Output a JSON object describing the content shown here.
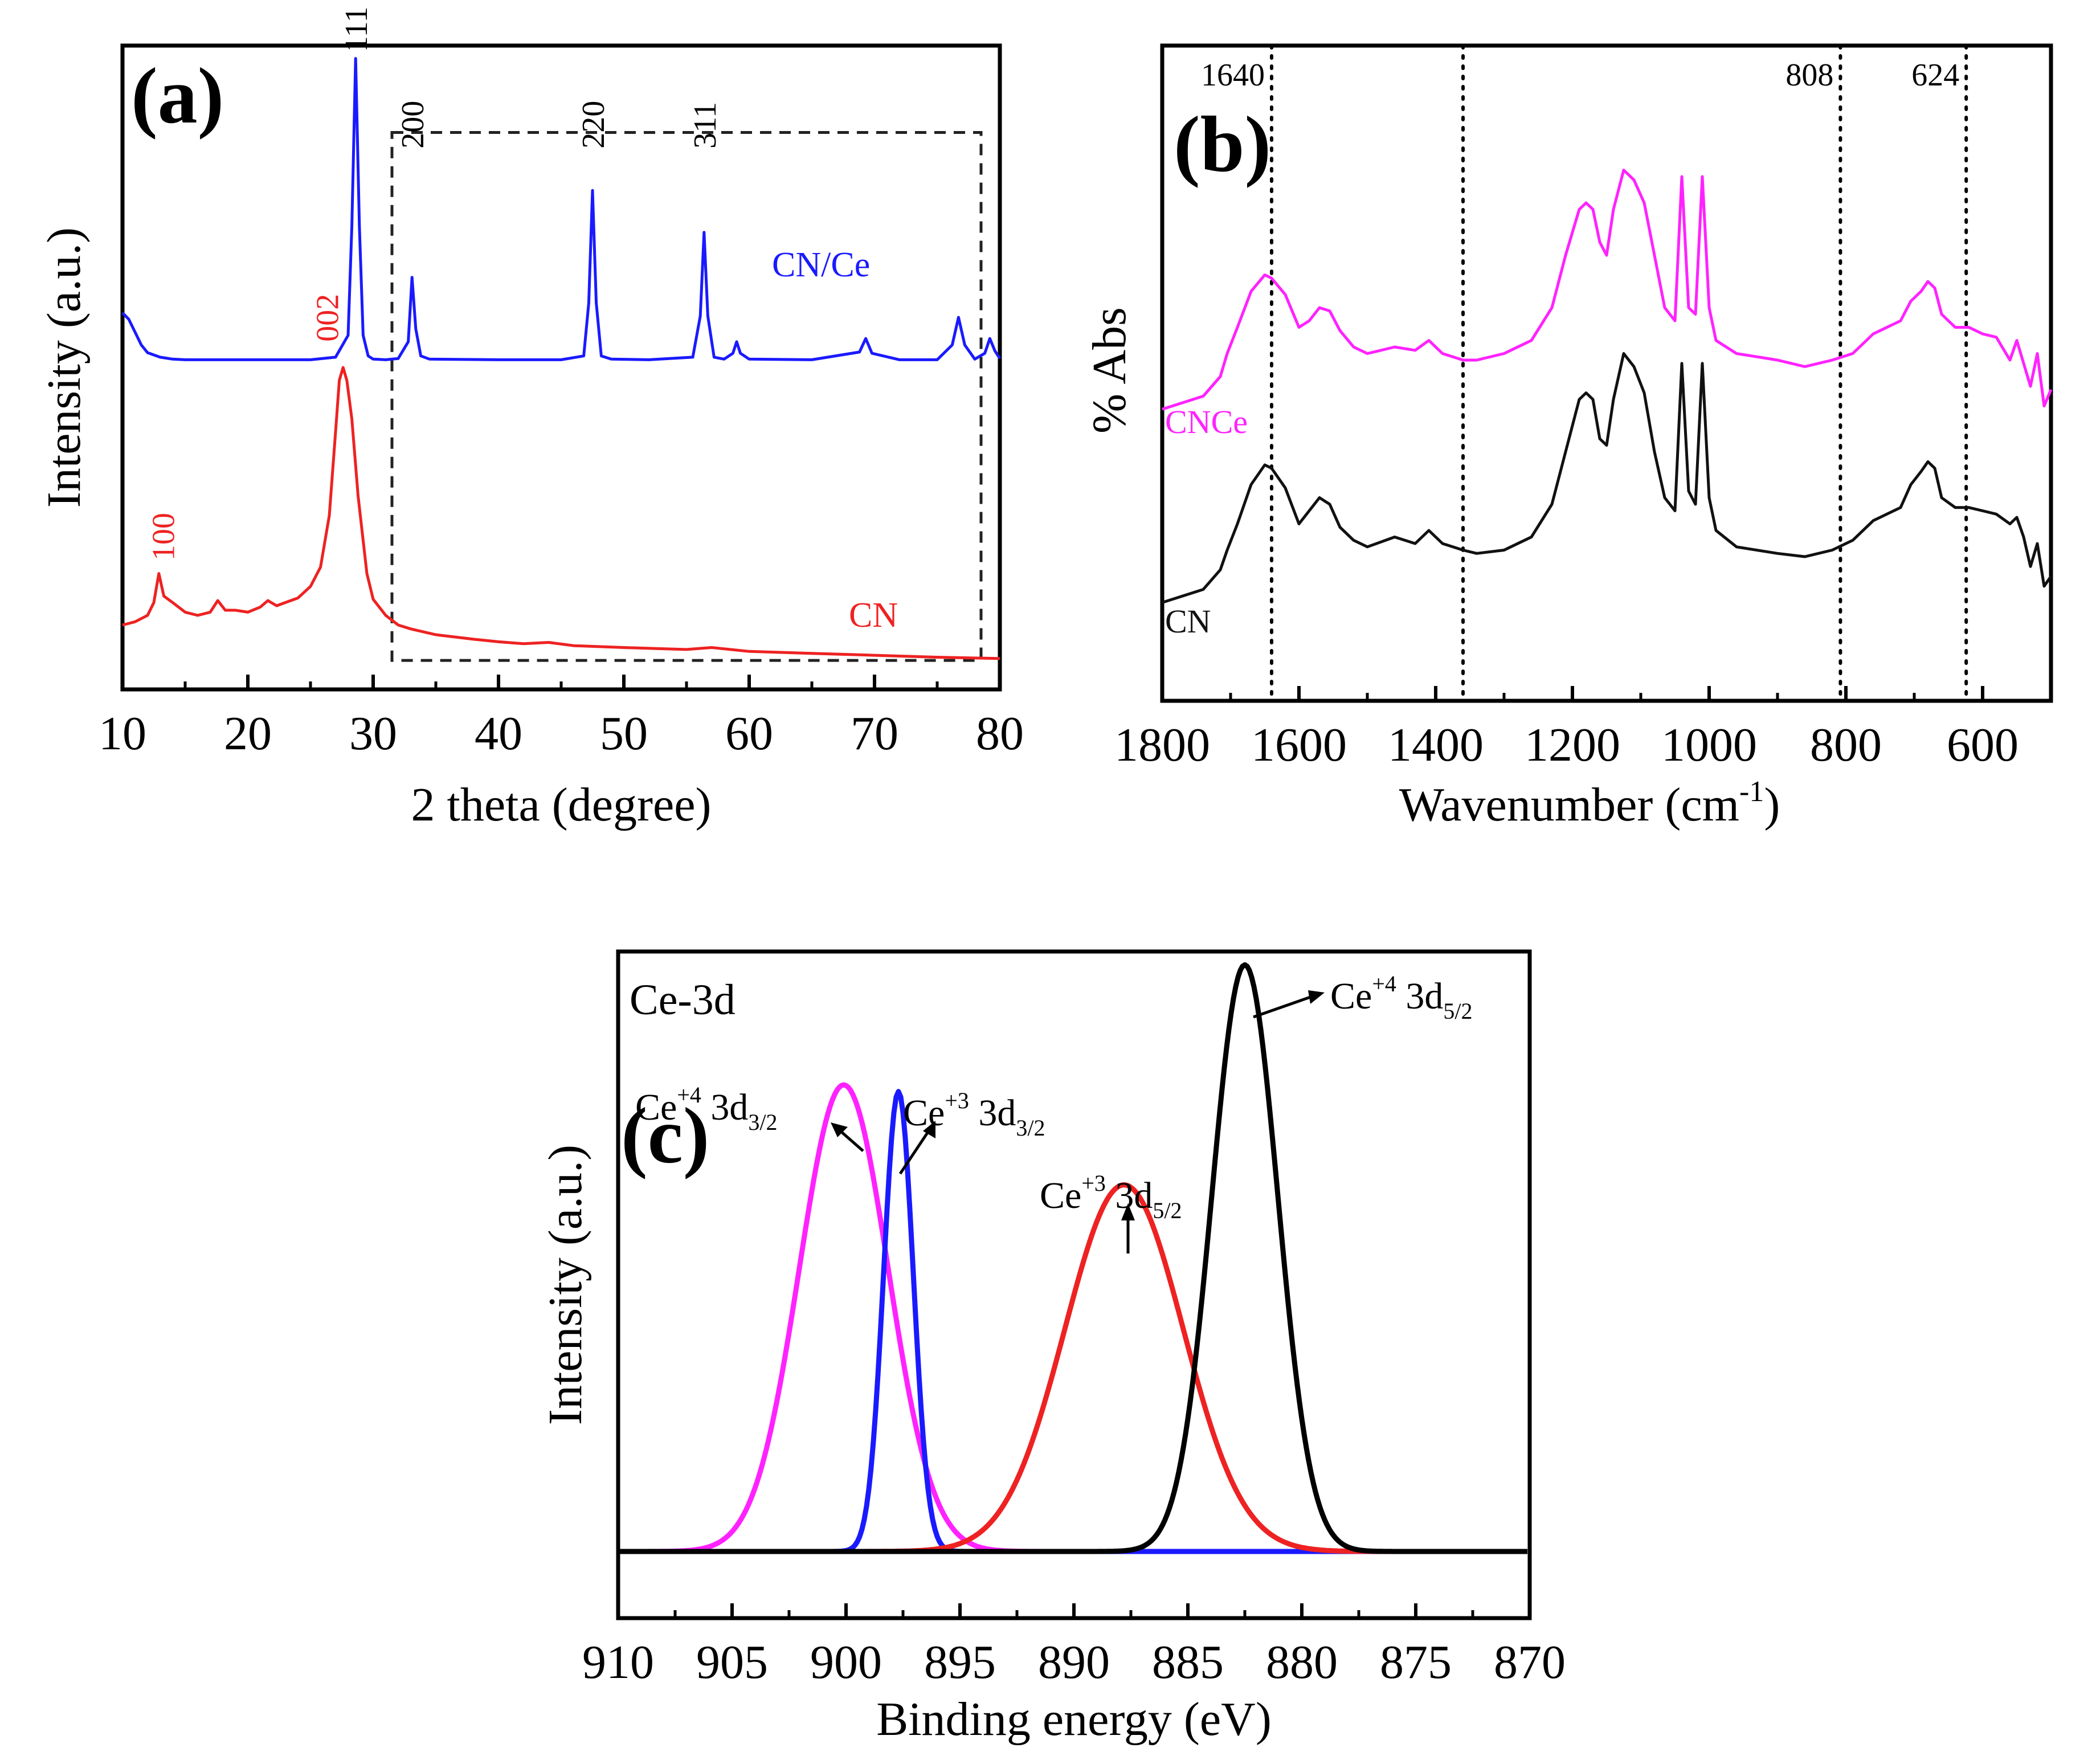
{
  "chart_data": [
    {
      "panel": "(a)",
      "type": "line",
      "xlabel": "2 theta (degree)",
      "ylabel": "Intensity (a.u.)",
      "xlim": [
        10,
        80
      ],
      "xticks": [
        "10",
        "20",
        "30",
        "40",
        "50",
        "60",
        "70",
        "80"
      ],
      "ylim": [
        0,
        100
      ],
      "grid": false,
      "legend": "inline labels",
      "series": [
        {
          "name": "CN/Ce",
          "color": "#1a1aff",
          "x": [
            10,
            10.5,
            11,
            11.5,
            12,
            13,
            14,
            15,
            20,
            25,
            27,
            28,
            28.3,
            28.6,
            28.9,
            29.2,
            29.6,
            30,
            31,
            32,
            32.8,
            33.1,
            33.4,
            33.8,
            34.5,
            40,
            45,
            46.8,
            47.2,
            47.5,
            47.8,
            48.2,
            49,
            52,
            55.5,
            56.1,
            56.4,
            56.7,
            57.2,
            58,
            58.7,
            59,
            59.3,
            60,
            65,
            68.8,
            69.3,
            69.8,
            72,
            75,
            76.2,
            76.7,
            77.2,
            78,
            78.8,
            79.2,
            79.6,
            80
          ],
          "values": [
            58.5,
            57.5,
            55.5,
            53.5,
            52.3,
            51.6,
            51.3,
            51.2,
            51.2,
            51.2,
            51.6,
            55,
            72,
            98,
            72,
            55,
            51.8,
            51.3,
            51.2,
            51.4,
            54,
            64,
            56,
            51.8,
            51.3,
            51.2,
            51.2,
            51.8,
            60,
            77.5,
            60,
            51.8,
            51.3,
            51.2,
            51.6,
            58,
            71,
            58,
            51.6,
            51.3,
            52.2,
            54,
            52.2,
            51.3,
            51.2,
            52.4,
            54.5,
            52.2,
            51.2,
            51.2,
            53.5,
            57.8,
            53.5,
            51.3,
            52.2,
            54.5,
            52.6,
            51.4
          ]
        },
        {
          "name": "CN",
          "color": "#ee2222",
          "x": [
            10,
            11,
            12,
            12.5,
            12.9,
            13.3,
            14,
            15,
            16,
            17,
            17.6,
            18.2,
            19,
            20,
            21,
            21.6,
            22.3,
            23,
            24,
            25,
            25.8,
            26.5,
            27,
            27.3,
            27.6,
            27.9,
            28.3,
            28.8,
            29.5,
            30,
            31,
            32,
            33,
            35,
            38,
            40,
            42,
            44,
            46,
            50,
            55,
            57,
            60,
            65,
            70,
            75,
            80
          ],
          "values": [
            10,
            10.5,
            11.5,
            13.5,
            18,
            14.5,
            13.5,
            12,
            11.5,
            12,
            13.8,
            12.3,
            12.3,
            12,
            12.8,
            13.8,
            13,
            13.5,
            14.2,
            16,
            19,
            27,
            40,
            48,
            50,
            48,
            42,
            30,
            18,
            14,
            11.5,
            10,
            9.4,
            8.5,
            7.8,
            7.4,
            7.1,
            7.3,
            6.8,
            6.5,
            6.2,
            6.5,
            5.9,
            5.6,
            5.3,
            5,
            4.8
          ]
        }
      ],
      "annotations": [
        {
          "text": "111",
          "x": 28.6,
          "y": 99,
          "color": "#000000"
        },
        {
          "text": "200",
          "x": 33.1,
          "y": 84,
          "color": "#000000"
        },
        {
          "text": "220",
          "x": 47.5,
          "y": 84,
          "color": "#000000"
        },
        {
          "text": "311",
          "x": 56.4,
          "y": 84,
          "color": "#000000"
        },
        {
          "text": "002",
          "x": 26.3,
          "y": 54,
          "color": "#ee2222"
        },
        {
          "text": "100",
          "x": 13.2,
          "y": 20,
          "color": "#ee2222"
        }
      ]
    },
    {
      "panel": "(b)",
      "type": "line",
      "xlabel": "Wavenumber (cm⁻¹)",
      "ylabel": "% Abs",
      "xlim": [
        1800,
        500
      ],
      "xticks": [
        "1800",
        "1600",
        "1400",
        "1200",
        "1000",
        "800",
        "600"
      ],
      "ylim": [
        0,
        100
      ],
      "grid": false,
      "legend": "inline labels",
      "reference_lines": [
        {
          "x": 1640,
          "label": "1640"
        },
        {
          "x": 1360,
          "label": ""
        },
        {
          "x": 808,
          "label": "808"
        },
        {
          "x": 624,
          "label": "624"
        }
      ],
      "series": [
        {
          "name": "CNCe",
          "color": "#ff22ff",
          "x": [
            1800,
            1740,
            1715,
            1705,
            1690,
            1670,
            1650,
            1640,
            1620,
            1600,
            1585,
            1570,
            1555,
            1540,
            1520,
            1500,
            1460,
            1430,
            1410,
            1390,
            1360,
            1340,
            1300,
            1260,
            1230,
            1210,
            1190,
            1180,
            1170,
            1160,
            1150,
            1140,
            1125,
            1110,
            1095,
            1080,
            1065,
            1050,
            1040,
            1030,
            1020,
            1010,
            1000,
            990,
            960,
            900,
            860,
            820,
            790,
            760,
            740,
            720,
            705,
            690,
            680,
            670,
            660,
            640,
            620,
            600,
            580,
            560,
            550,
            540,
            530,
            520,
            510,
            500
          ],
          "values": [
            44.5,
            46.5,
            49.5,
            53,
            57,
            62.5,
            65,
            64.5,
            62,
            57,
            58,
            60,
            59.5,
            56.5,
            54,
            53,
            54,
            53.5,
            55,
            53,
            52,
            52,
            53,
            55,
            60,
            68,
            75,
            76,
            75,
            70,
            68,
            75,
            81,
            79.5,
            76,
            68,
            60,
            58,
            80,
            60,
            59,
            80,
            60,
            55,
            53,
            52,
            51,
            52,
            53,
            56,
            57,
            58,
            61,
            62.5,
            64,
            63,
            59,
            57,
            57,
            56,
            55.5,
            52,
            55,
            51.5,
            48,
            53,
            45,
            47.5
          ]
        },
        {
          "name": "CN",
          "color": "#111111",
          "x": [
            1800,
            1740,
            1715,
            1705,
            1690,
            1670,
            1650,
            1640,
            1620,
            1600,
            1585,
            1570,
            1555,
            1540,
            1520,
            1500,
            1460,
            1430,
            1410,
            1390,
            1360,
            1340,
            1300,
            1260,
            1230,
            1210,
            1190,
            1180,
            1170,
            1160,
            1150,
            1140,
            1125,
            1110,
            1095,
            1080,
            1065,
            1050,
            1040,
            1030,
            1020,
            1010,
            1000,
            990,
            960,
            900,
            860,
            820,
            790,
            760,
            740,
            720,
            705,
            690,
            680,
            670,
            660,
            640,
            620,
            600,
            580,
            560,
            550,
            540,
            530,
            520,
            510,
            500
          ],
          "values": [
            15,
            17,
            20,
            23,
            27,
            33,
            36,
            35.5,
            32.5,
            27,
            29,
            31,
            30,
            26.5,
            24.5,
            23.5,
            25,
            24,
            26,
            24,
            23,
            22.5,
            23,
            25,
            30,
            38,
            46,
            47,
            46,
            40,
            39,
            46,
            53,
            51,
            47,
            38,
            31,
            29,
            51.5,
            32,
            30,
            51.5,
            31,
            26,
            23.5,
            22.5,
            22,
            23,
            24.5,
            27.5,
            28.5,
            29.5,
            33,
            35,
            36.5,
            35.5,
            31,
            29.5,
            29.5,
            29,
            28.5,
            27,
            28,
            25,
            20.5,
            24,
            17.5,
            19
          ]
        }
      ]
    },
    {
      "panel": "(c)",
      "type": "line",
      "title": "Ce-3d",
      "xlabel": "Binding energy (eV)",
      "ylabel": "Intensity (a.u.)",
      "xlim": [
        910,
        870
      ],
      "xticks": [
        "910",
        "905",
        "900",
        "895",
        "890",
        "885",
        "880",
        "875",
        "870"
      ],
      "ylim": [
        0,
        100
      ],
      "grid": false,
      "legend": "annotated peaks",
      "series": [
        {
          "name": "Ce+4 3d3/2",
          "color": "#ff22ff",
          "center": 900.1,
          "sigma": 1.95,
          "amplitude": 70,
          "baseline": 10
        },
        {
          "name": "Ce+3 3d3/2",
          "color": "#1a1aff",
          "center": 897.7,
          "sigma": 0.65,
          "amplitude": 69,
          "baseline": 10
        },
        {
          "name": "Ce+3 3d5/2",
          "color": "#ee2222",
          "center": 887.8,
          "sigma": 2.6,
          "amplitude": 55,
          "baseline": 10
        },
        {
          "name": "Ce+4 3d5/2",
          "color": "#000000",
          "center": 882.5,
          "sigma": 1.45,
          "amplitude": 88,
          "baseline": 10
        }
      ]
    }
  ],
  "labels": {
    "panel_a": "(a)",
    "panel_b": "(b)",
    "panel_c": "(c)",
    "series_cnce_a": "CN/Ce",
    "series_cn_a": "CN",
    "series_cnce_b": "CNCe",
    "series_cn_b": "CN",
    "ce3d": "Ce-3d",
    "peak_ce4_32": {
      "base": "Ce",
      "sup": "+4",
      "mid": " 3d",
      "sub": "3/2"
    },
    "peak_ce3_32": {
      "base": "Ce",
      "sup": "+3",
      "mid": " 3d",
      "sub": "3/2"
    },
    "peak_ce3_52": {
      "base": "Ce",
      "sup": "+3",
      "mid": " 3d",
      "sub": "5/2"
    },
    "peak_ce4_52": {
      "base": "Ce",
      "sup": "+4",
      "mid": " 3d",
      "sub": "5/2"
    },
    "xlabel_b_main": "Wavenumber (cm",
    "xlabel_b_sup": "-1",
    "xlabel_b_end": ")"
  }
}
